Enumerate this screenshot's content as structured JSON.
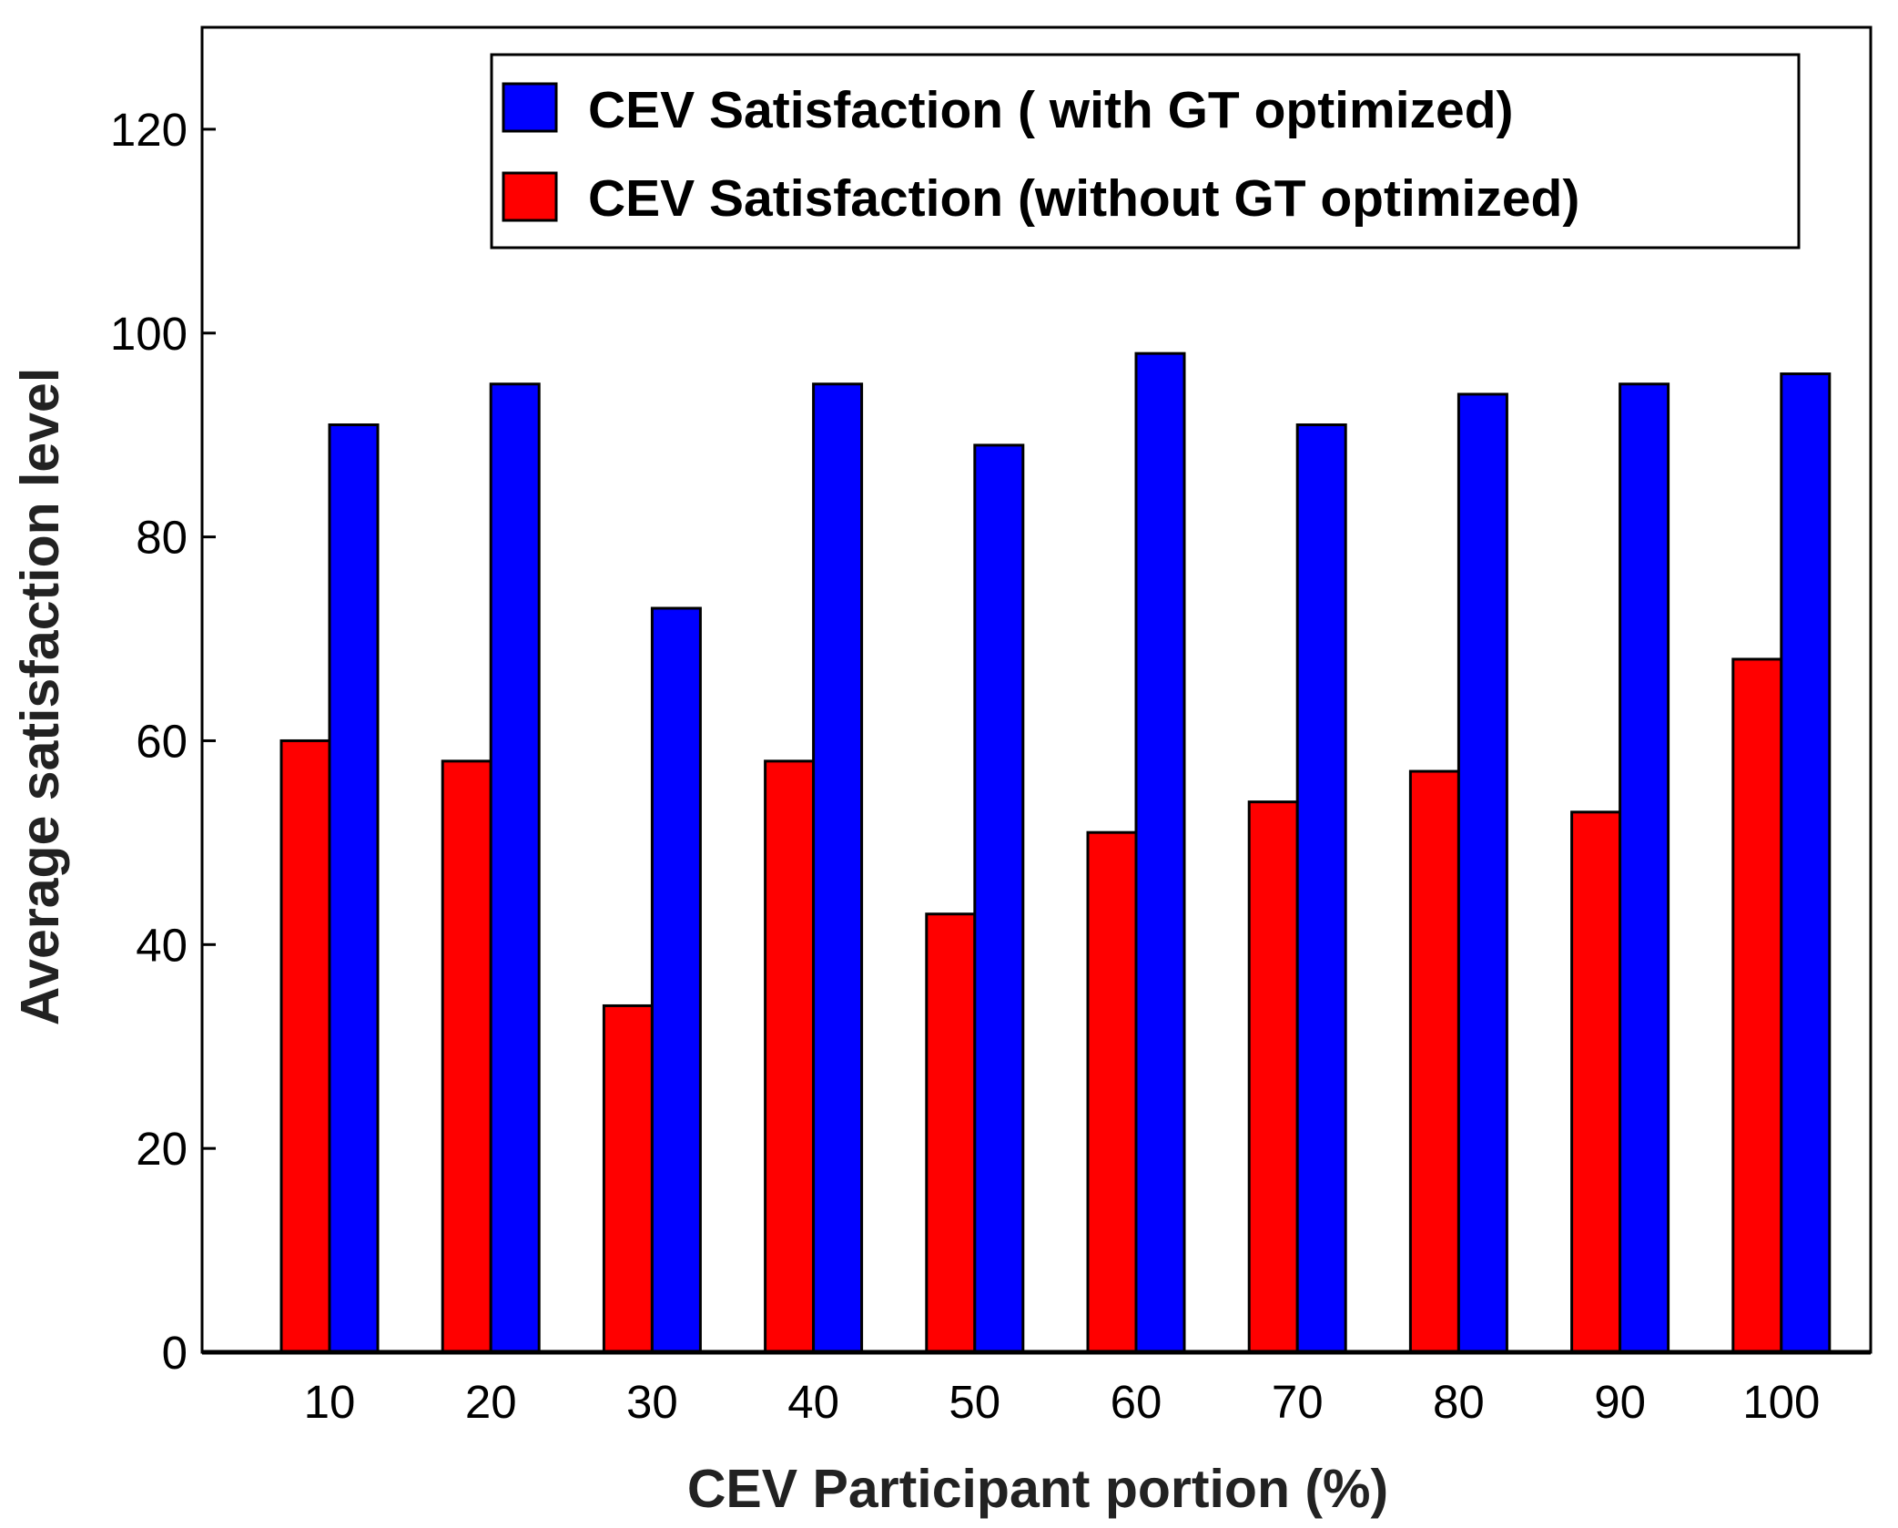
{
  "chart_data": {
    "type": "bar",
    "title": "",
    "xlabel": "CEV Participant portion (%)",
    "ylabel": "Average satisfaction level",
    "categories": [
      "10",
      "20",
      "30",
      "40",
      "50",
      "60",
      "70",
      "80",
      "90",
      "100"
    ],
    "ylim": [
      0,
      130
    ],
    "yticks": [
      "0",
      "20",
      "40",
      "60",
      "80",
      "100",
      "120"
    ],
    "grid": false,
    "legend_position": "top-right",
    "series": [
      {
        "name": "CEV Satisfaction (without GT optimized)",
        "color": "#ff0000",
        "values": [
          60,
          58,
          34,
          58,
          43,
          51,
          54,
          57,
          53,
          68
        ]
      },
      {
        "name": "CEV Satisfaction ( with GT optimized)",
        "color": "#0000ff",
        "values": [
          91,
          95,
          73,
          95,
          89,
          98,
          91,
          94,
          95,
          96
        ]
      }
    ],
    "legend_order": [
      1,
      0
    ]
  }
}
